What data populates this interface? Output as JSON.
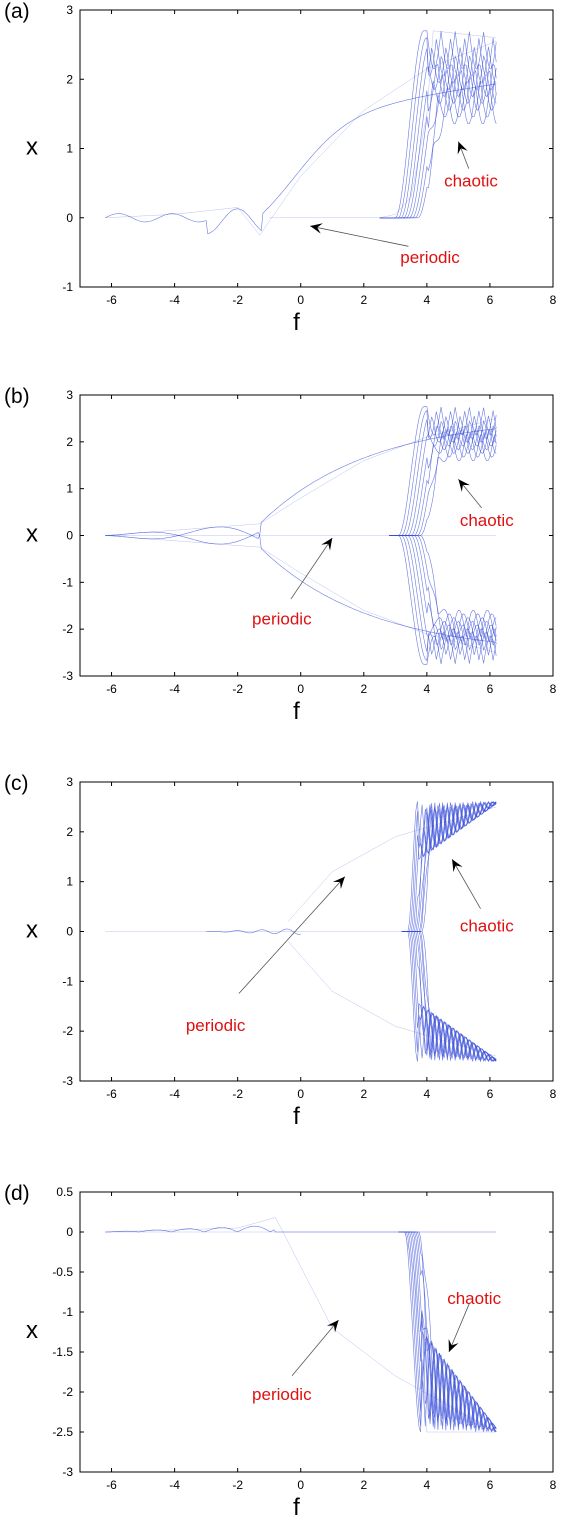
{
  "chart_data": [
    {
      "type": "line",
      "panel_label": "(a)",
      "xlabel": "f",
      "ylabel": "x",
      "xlim": [
        -7,
        8
      ],
      "ylim": [
        -1,
        3
      ],
      "xticks": [
        -6,
        -4,
        -2,
        0,
        2,
        4,
        6,
        8
      ],
      "yticks": [
        -1,
        0,
        1,
        2,
        3
      ],
      "series_color": "#3a4fd8",
      "series": [
        {
          "x": [
            -6.2,
            -4.0,
            -2.0,
            -1.3,
            0,
            2,
            4,
            6.2
          ],
          "y": [
            0.0,
            0.05,
            0.15,
            -0.25,
            0.6,
            1.55,
            2.15,
            2.55
          ]
        },
        {
          "x": [
            -1.0,
            2.5,
            3.0,
            3.5,
            4.0,
            4.2,
            6.2
          ],
          "y": [
            0.0,
            0.0,
            0.05,
            0.3,
            1.5,
            2.7,
            2.6
          ]
        }
      ],
      "annotations": [
        {
          "text": "chaotic",
          "data_x": 5.4,
          "data_y": 0.45,
          "arrow_to": [
            5.0,
            1.1
          ]
        },
        {
          "text": "periodic",
          "data_x": 4.1,
          "data_y": -0.65,
          "arrow_to": [
            0.3,
            -0.12
          ]
        }
      ]
    },
    {
      "type": "line",
      "panel_label": "(b)",
      "xlabel": "f",
      "ylabel": "x",
      "xlim": [
        -7,
        8
      ],
      "ylim": [
        -3,
        3
      ],
      "xticks": [
        -6,
        -4,
        -2,
        0,
        2,
        4,
        6,
        8
      ],
      "yticks": [
        -3,
        -2,
        -1,
        0,
        1,
        2,
        3
      ],
      "series_color": "#3a4fd8",
      "series": [
        {
          "x": [
            -6.2,
            -1.3,
            0,
            2,
            4,
            6.2
          ],
          "y": [
            0.0,
            0.25,
            0.8,
            1.6,
            2.1,
            2.5
          ]
        },
        {
          "x": [
            -6.2,
            -1.3,
            0,
            2,
            4,
            6.2
          ],
          "y": [
            0.0,
            -0.25,
            -0.8,
            -1.6,
            -2.1,
            -2.5
          ]
        },
        {
          "x": [
            -6.2,
            6.2
          ],
          "y": [
            0.0,
            0.0
          ]
        }
      ],
      "annotations": [
        {
          "text": "chaotic",
          "data_x": 5.9,
          "data_y": 0.2,
          "arrow_to": [
            5.0,
            1.2
          ]
        },
        {
          "text": "periodic",
          "data_x": -0.6,
          "data_y": -1.9,
          "arrow_to": [
            1.0,
            -0.05
          ]
        }
      ]
    },
    {
      "type": "line",
      "panel_label": "(c)",
      "xlabel": "f",
      "ylabel": "x",
      "xlim": [
        -7,
        8
      ],
      "ylim": [
        -3,
        3
      ],
      "xticks": [
        -6,
        -4,
        -2,
        0,
        2,
        4,
        6,
        8
      ],
      "yticks": [
        -3,
        -2,
        -1,
        0,
        1,
        2,
        3
      ],
      "series_color": "#3a4fd8",
      "series": [
        {
          "x": [
            -0.4,
            1,
            3,
            6.2
          ],
          "y": [
            0.2,
            1.2,
            1.9,
            2.5
          ]
        },
        {
          "x": [
            -0.4,
            1,
            3,
            6.2
          ],
          "y": [
            -0.2,
            -1.2,
            -1.9,
            -2.5
          ]
        },
        {
          "x": [
            -6.2,
            3.5
          ],
          "y": [
            0.0,
            0.0
          ]
        }
      ],
      "annotations": [
        {
          "text": "chaotic",
          "data_x": 5.9,
          "data_y": 0.0,
          "arrow_to": [
            4.8,
            1.45
          ]
        },
        {
          "text": "periodic",
          "data_x": -2.7,
          "data_y": -2.0,
          "arrow_to": [
            1.4,
            1.1
          ]
        }
      ]
    },
    {
      "type": "line",
      "panel_label": "(d)",
      "xlabel": "f",
      "ylabel": "x",
      "xlim": [
        -7,
        8
      ],
      "ylim": [
        -3,
        0.5
      ],
      "xticks": [
        -6,
        -4,
        -2,
        0,
        2,
        4,
        6,
        8
      ],
      "yticks": [
        -3,
        -2.5,
        -2,
        -1.5,
        -1,
        -0.5,
        0,
        0.5
      ],
      "series_color": "#3a4fd8",
      "series": [
        {
          "x": [
            -6.2,
            -2.0,
            -0.8,
            1,
            3,
            6.2
          ],
          "y": [
            0.0,
            0.05,
            0.18,
            -1.2,
            -1.8,
            -2.5
          ]
        },
        {
          "x": [
            -6.2,
            3.3,
            3.6,
            4.0,
            6.2
          ],
          "y": [
            0.0,
            0.0,
            -0.5,
            -2.5,
            -2.5
          ]
        }
      ],
      "annotations": [
        {
          "text": "chaotic",
          "data_x": 5.5,
          "data_y": -0.9,
          "arrow_to": [
            4.7,
            -1.5
          ]
        },
        {
          "text": "periodic",
          "data_x": -0.6,
          "data_y": -2.1,
          "arrow_to": [
            1.2,
            -1.1
          ]
        }
      ]
    }
  ]
}
